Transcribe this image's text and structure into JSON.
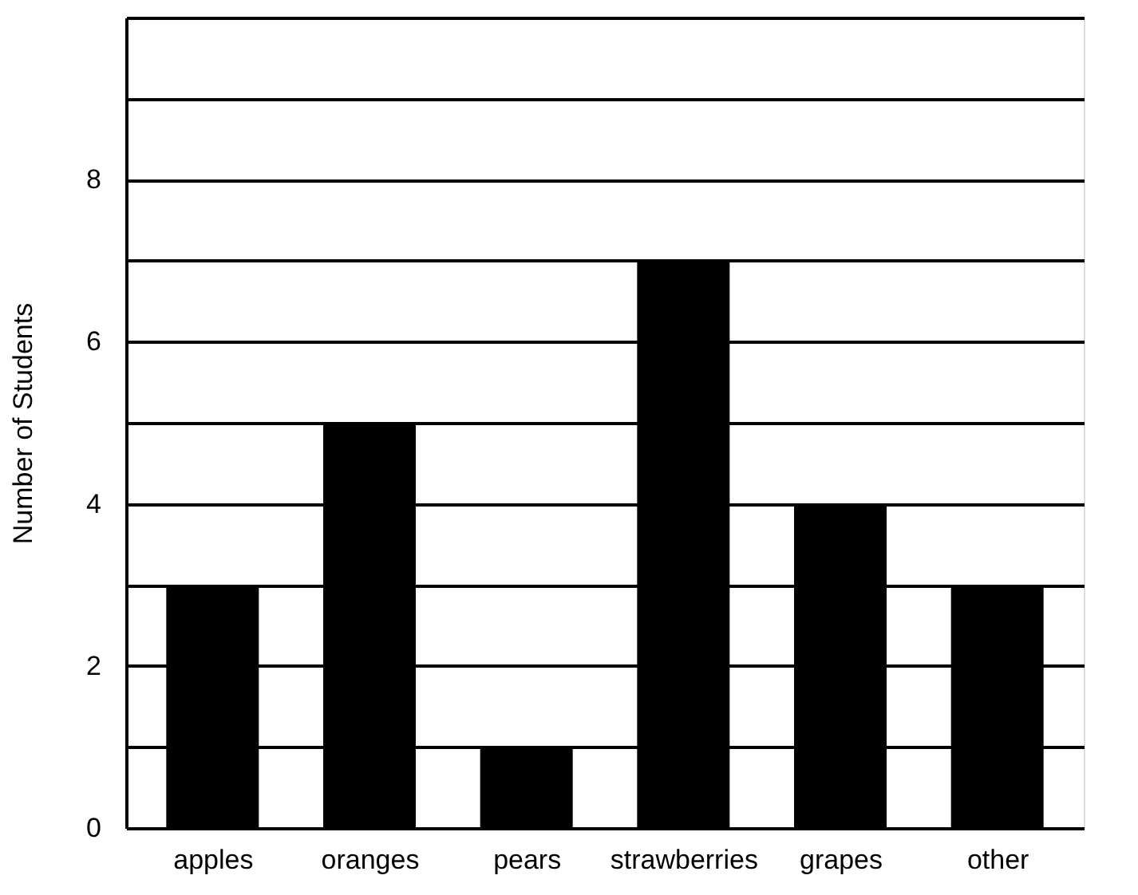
{
  "chart_data": {
    "type": "bar",
    "ylabel": "Number of Students",
    "categories": [
      "apples",
      "oranges",
      "pears",
      "strawberries",
      "grapes",
      "other"
    ],
    "values": [
      3,
      5,
      1,
      7,
      4,
      3
    ],
    "color": "#000000",
    "ylim": [
      0,
      10
    ],
    "yticks": [
      0,
      {
        "value": 1,
        "label": null
      },
      2,
      {
        "value": 3,
        "label": null
      },
      4,
      {
        "value": 5,
        "label": null
      },
      6,
      {
        "value": 7,
        "label": null
      },
      8,
      {
        "value": 9,
        "label": null
      },
      {
        "value": 10,
        "label": null
      }
    ],
    "grid": "y"
  }
}
